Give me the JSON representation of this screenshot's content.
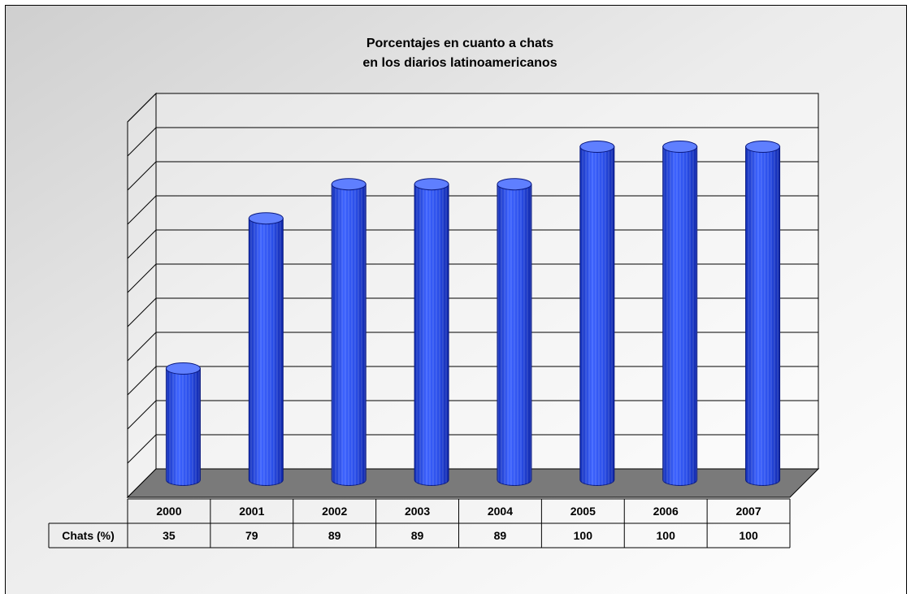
{
  "chart_data": {
    "type": "bar",
    "title": [
      "Porcentajes en cuanto a chats",
      "en los diarios latinoamericanos"
    ],
    "categories": [
      "2000",
      "2001",
      "2002",
      "2003",
      "2004",
      "2005",
      "2006",
      "2007"
    ],
    "series": [
      {
        "name": "Chats (%)",
        "values": [
          35,
          79,
          89,
          89,
          89,
          100,
          100,
          100
        ]
      }
    ],
    "ylim": [
      0,
      110
    ],
    "grid": true,
    "legend": "none",
    "style": "3d-cylinder",
    "colors": {
      "bar": "#2a4ee8",
      "bar_dark": "#0f26a8",
      "bar_light": "#5f7fff",
      "floor": "#7a7a7a"
    },
    "data_table": true
  }
}
